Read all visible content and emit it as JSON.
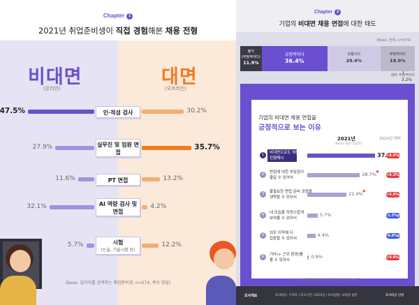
{
  "left": {
    "chapter": "Chapter",
    "chapter_num": "1",
    "title_pre": "2021년 취업준비생이 ",
    "title_b1": "직접 경험",
    "title_mid": "해본 ",
    "title_b2": "채용 전형",
    "headers": {
      "left_main": "비대면",
      "left_sub": "(온라인)",
      "right_main": "대면",
      "right_sub": "(오프라인)"
    },
    "footnote": "(Base: 일자리를 검색하는 취업준비생, n=574, 복수 응답)"
  },
  "right": {
    "chapter": "Chapter",
    "chapter_num": "2",
    "title_pre": "기업의 ",
    "title_b": "비대면 채용 면접",
    "title_post": "에 대한 태도",
    "top_note": "(Base: 전체, n=574)",
    "card_title1": "기업의 비대면 채용 면접을",
    "card_title2": "긍정적으로 보는 이유",
    "col_year": "2021년",
    "col_prev": "2020년 대비",
    "col_base": "(Base: 긍정 응답자)",
    "footnote": "(Base: 비대면 채용면접 긍정, 단위: %, 복수 응답)",
    "bottom_left": "조사개요",
    "bottom_mid": "조사대상: 구직자 | 조사기간: 2021년 | 조사방법: 모바일 설문",
    "bottom_right": "조사대상 선정"
  },
  "chart_data": [
    {
      "type": "bar",
      "title": "2021년 취업준비생이 직접 경험해본 채용 전형",
      "categories": [
        "인·적성 검사",
        "실무진 및 임원 면접",
        "PT 면접",
        "AI 역량 검사 및 면접",
        "시험"
      ],
      "category_subs": [
        "",
        "",
        "",
        "",
        "(논술, 기술시험 등)"
      ],
      "series": [
        {
          "name": "비대면 (온라인)",
          "values": [
            47.5,
            27.9,
            11.6,
            32.1,
            5.7
          ],
          "color": "#6a4fd0"
        },
        {
          "name": "대면 (오프라인)",
          "values": [
            30.2,
            35.7,
            13.2,
            4.2,
            12.2
          ],
          "color": "#f07c1d"
        }
      ],
      "highlight": {
        "비대면 (온라인)": [
          0
        ],
        "대면 (오프라인)": [
          1
        ]
      },
      "value_labels": {
        "비대면 (온라인)": [
          "47.5%",
          "27.9%",
          "11.6%",
          "32.1%",
          "5.7%"
        ],
        "대면 (오프라인)": [
          "30.2%",
          "35.7%",
          "13.2%",
          "4.2%",
          "12.2%"
        ]
      },
      "unit": "%"
    },
    {
      "type": "bar",
      "title": "기업의 비대면 채용 면접에 대한 태도",
      "categories": [
        "불가 (부정적이다)",
        "긍정적이다",
        "보통이다",
        "부정적이다",
        "매우 부정적이다"
      ],
      "values": [
        11.9,
        36.4,
        29.4,
        19.0,
        3.2
      ],
      "labels": [
        "불가\n(부정적이다)\n11.9%",
        "긍정적이다\n36.4%",
        "보통이다\n29.4%",
        "부정적이다\n19.0%",
        "매우 부정적이다\n3.2%"
      ],
      "colors": [
        "#3a3a46",
        "#6a4fd0",
        "#cfc9e6",
        "#bdb9cc",
        "#4a4a55"
      ],
      "unit": "%"
    },
    {
      "type": "bar",
      "title": "기업의 비대면 채용 면접을 긍정적으로 보는 이유",
      "categories": [
        "비대면으로도 채용을 진행해서",
        "면접에 대한 부담감이 줄일 수 있어서",
        "불필요한 면접 준비 과정을 생략할 수 있어서",
        "내 모습을 자연스럽게 보여줄 수 있어서",
        "외모 외적에 더 집중할 수 있어서",
        "기타(+ 근무 환경)를 볼 수 있어서"
      ],
      "values": [
        37.0,
        28.7,
        21.4,
        5.7,
        4.4,
        0.9
      ],
      "value_labels": [
        "37.0%",
        "28.7%",
        "21.4%",
        "5.7%",
        "4.4%",
        "0.9%"
      ],
      "star": [
        false,
        true,
        true,
        false,
        false,
        false
      ],
      "change_vs_2020": [
        "+8.5%p",
        "+6.3%p",
        "+5.8%p",
        "-1.5%p",
        "-0.8%p",
        "+0.8%p"
      ],
      "change_colors": [
        "#e33b3b",
        "#e33b3b",
        "#e33b3b",
        "#3d5bd9",
        "#3d5bd9",
        "#e33b3b"
      ],
      "xlim": [
        0,
        40
      ],
      "unit": "%"
    }
  ]
}
